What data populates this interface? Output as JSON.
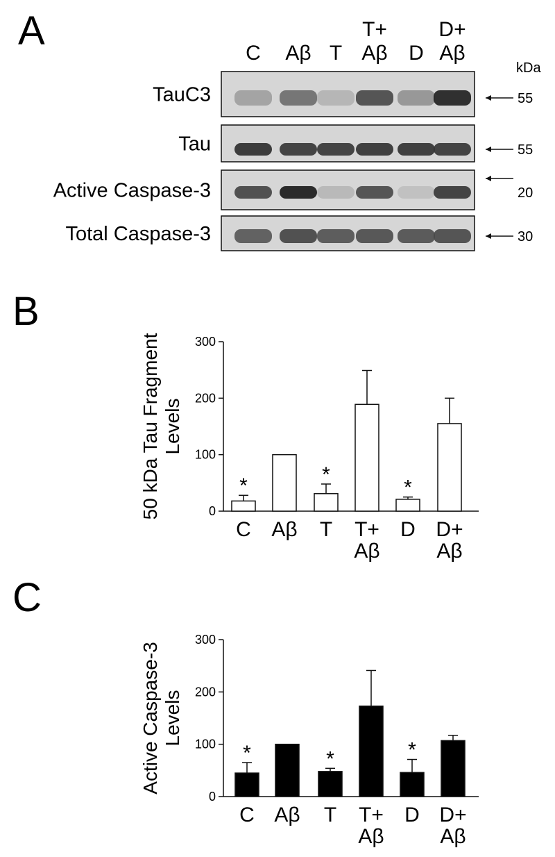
{
  "panels": {
    "a": "A",
    "b": "B",
    "c": "C"
  },
  "blot": {
    "lanes": [
      {
        "top": "",
        "bottom": "C"
      },
      {
        "top": "",
        "bottom": "Aβ"
      },
      {
        "top": "",
        "bottom": "T"
      },
      {
        "top": "T+",
        "bottom": "Aβ"
      },
      {
        "top": "",
        "bottom": "D"
      },
      {
        "top": "D+",
        "bottom": "Aβ"
      }
    ],
    "kda_header": "kDa",
    "rows": [
      {
        "label": "TauC3",
        "kda": "55",
        "intensity": [
          0.22,
          0.5,
          0.12,
          0.7,
          0.3,
          0.92
        ]
      },
      {
        "label": "Tau",
        "kda": "55",
        "intensity": [
          0.85,
          0.8,
          0.8,
          0.82,
          0.82,
          0.8
        ]
      },
      {
        "label": "Active Caspase-3",
        "kda": "20",
        "intensity": [
          0.72,
          0.95,
          0.1,
          0.7,
          0.05,
          0.8
        ]
      },
      {
        "label": "Total Caspase-3",
        "kda": "30",
        "intensity": [
          0.62,
          0.72,
          0.65,
          0.68,
          0.66,
          0.7
        ]
      }
    ]
  },
  "chart_data": [
    {
      "type": "bar",
      "panel": "B",
      "categories": [
        "C",
        "Aβ",
        "T",
        "T+ Aβ",
        "D",
        "D+ Aβ"
      ],
      "category_lines": [
        [
          "C"
        ],
        [
          "Aβ"
        ],
        [
          "T"
        ],
        [
          "T+",
          "Aβ"
        ],
        [
          "D"
        ],
        [
          "D+",
          "Aβ"
        ]
      ],
      "values": [
        18,
        100,
        31,
        189,
        21,
        155
      ],
      "errors": [
        10,
        0,
        17,
        60,
        4,
        45
      ],
      "significant": [
        "*",
        "",
        "*",
        "",
        "*",
        ""
      ],
      "ylabel": "50 kDa Tau Fragment Levels",
      "ylabel_lines": [
        "50 kDa Tau Fragment",
        "Levels"
      ],
      "ylim": [
        0,
        300
      ],
      "yticks": [
        "0",
        "100",
        "200",
        "300"
      ],
      "bar_color": "#ffffff",
      "title": "",
      "xlabel": "",
      "grid": false
    },
    {
      "type": "bar",
      "panel": "C",
      "categories": [
        "C",
        "Aβ",
        "T",
        "T+ Aβ",
        "D",
        "D+ Aβ"
      ],
      "category_lines": [
        [
          "C"
        ],
        [
          "Aβ"
        ],
        [
          "T"
        ],
        [
          "T+",
          "Aβ"
        ],
        [
          "D"
        ],
        [
          "D+",
          "Aβ"
        ]
      ],
      "values": [
        45,
        100,
        48,
        173,
        46,
        107
      ],
      "errors": [
        20,
        0,
        6,
        68,
        25,
        10
      ],
      "significant": [
        "*",
        "",
        "*",
        "",
        "*",
        ""
      ],
      "ylabel": "Active Caspase-3 Levels",
      "ylabel_lines": [
        "Active Caspase-3",
        "Levels"
      ],
      "ylim": [
        0,
        300
      ],
      "yticks": [
        "0",
        "100",
        "200",
        "300"
      ],
      "bar_color": "#000000",
      "title": "",
      "xlabel": "",
      "grid": false
    }
  ]
}
